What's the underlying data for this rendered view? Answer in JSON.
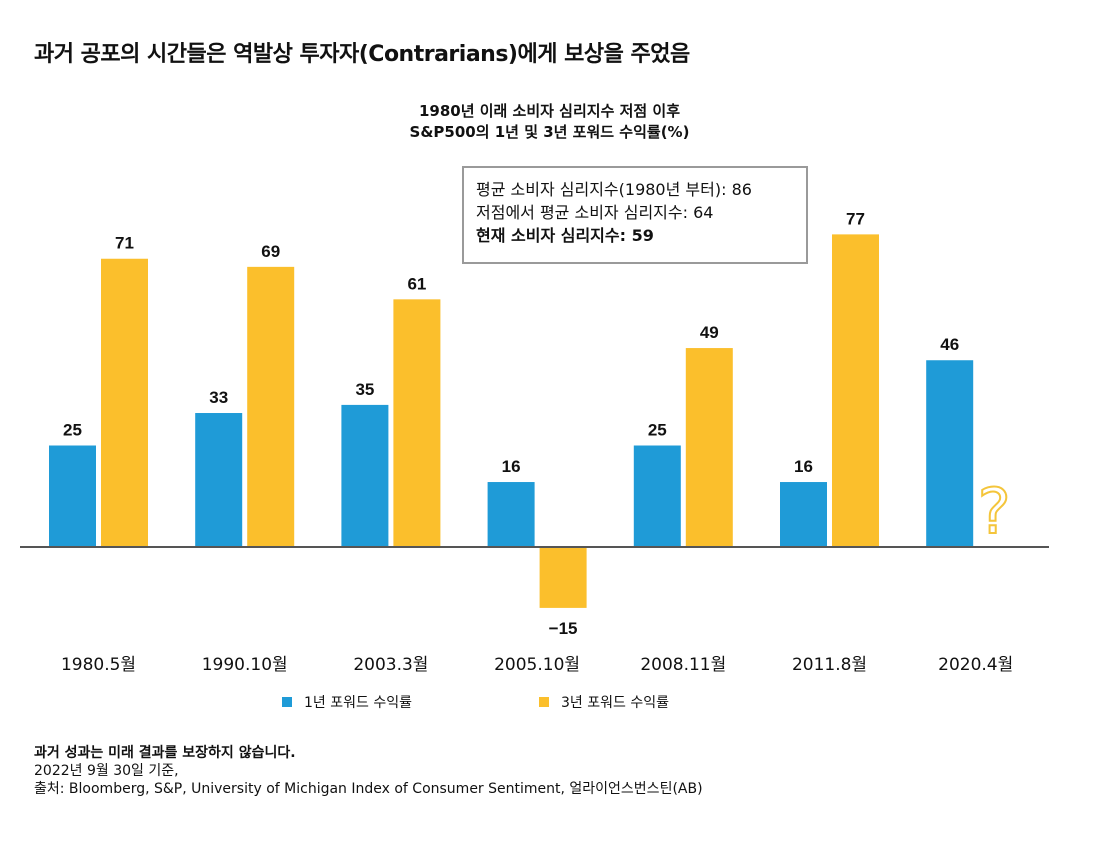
{
  "title": "과거 공포의 시간들은 역발상 투자자(Contrarians)에게 보상을 주었음",
  "subtitle_line1": "1980년 이래 소비자 심리지수 저점 이후",
  "subtitle_line2": "S&P500의 1년 및 3년 포워드 수익률(%)",
  "info_box": {
    "line1": "평균 소비자 심리지수(1980년 부터): 86",
    "line2": "저점에서 평균 소비자 심리지수: 64",
    "line3": "현재 소비자 심리지수: 59"
  },
  "legend": {
    "series1": "1년 포워드 수익률",
    "series2": "3년 포워드 수익률"
  },
  "footnotes": {
    "line1": "과거 성과는 미래 결과를 보장하지 않습니다.",
    "line2": "2022년 9월 30일 기준,",
    "line3": "출처: Bloomberg, S&P, University of Michigan Index of Consumer Sentiment, 얼라이언스번스틴(AB)"
  },
  "colors": {
    "series1": "#1f9bd7",
    "series2": "#fbbf2c",
    "axis": "#555555",
    "question": "#f4c53b"
  },
  "chart_data": {
    "type": "bar",
    "categories": [
      "1980.5월",
      "1990.10월",
      "2003.3월",
      "2005.10월",
      "2008.11월",
      "2011.8월",
      "2020.4월"
    ],
    "series": [
      {
        "name": "1년 포워드 수익률",
        "values": [
          25,
          33,
          35,
          16,
          25,
          16,
          46
        ]
      },
      {
        "name": "3년 포워드 수익률",
        "values": [
          71,
          69,
          61,
          -15,
          49,
          77,
          null
        ]
      }
    ],
    "data_labels": {
      "series1": [
        "25",
        "33",
        "35",
        "16",
        "25",
        "16",
        "46"
      ],
      "series2": [
        "71",
        "69",
        "61",
        "−15",
        "49",
        "77",
        ""
      ]
    },
    "missing_marker": "?",
    "grid": false,
    "legend_position": "bottom",
    "ylim": [
      -15,
      77
    ]
  }
}
